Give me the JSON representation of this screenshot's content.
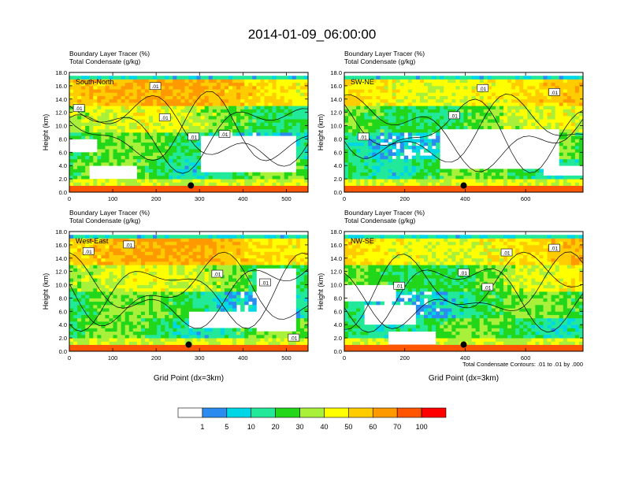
{
  "title": "2014-01-09_06:00:00",
  "colors": [
    "#ffffff",
    "#2b8cf0",
    "#00d7e6",
    "#22e89a",
    "#22d61a",
    "#a8f03a",
    "#ffff00",
    "#ffcc00",
    "#ff9900",
    "#ff5500",
    "#ff0000"
  ],
  "colorbar": {
    "labels": [
      "1",
      "5",
      "10",
      "20",
      "30",
      "40",
      "50",
      "60",
      "70",
      "100"
    ]
  },
  "chart_data": [
    {
      "type": "heatmap",
      "panel_label": "South-North",
      "header_line1": "Boundary Layer Tracer   (%)",
      "header_line2": "Total Condensate   (g/kg)",
      "ylabel": "Height (km)",
      "xlabel": "",
      "xlim": [
        0,
        550
      ],
      "ylim": [
        0,
        18
      ],
      "x_ticks": [
        "0",
        "100",
        "200",
        "300",
        "400",
        "500"
      ],
      "y_ticks": [
        "0.0",
        "2.0",
        "4.0",
        "6.0",
        "8.0",
        "10.0",
        "12.0",
        "14.0",
        "16.0",
        "18.0"
      ],
      "contour_labels": [
        ".01",
        ".01",
        ".01",
        ".01",
        ".01"
      ],
      "marker": {
        "x": 280,
        "y": 1.0
      }
    },
    {
      "type": "heatmap",
      "panel_label": "SW-NE",
      "header_line1": "Boundary Layer Tracer   (%)",
      "header_line2": "Total Condensate   (g/kg)",
      "ylabel": "Height (km)",
      "xlabel": "",
      "xlim": [
        0,
        790
      ],
      "ylim": [
        0,
        18
      ],
      "x_ticks": [
        "0",
        "200",
        "400",
        "600"
      ],
      "y_ticks": [
        "0.0",
        "2.0",
        "4.0",
        "6.0",
        "8.0",
        "10.0",
        "12.0",
        "14.0",
        "16.0",
        "18.0"
      ],
      "contour_labels": [
        ".01",
        ".01",
        ".01",
        ".01"
      ],
      "marker": {
        "x": 395,
        "y": 1.0
      }
    },
    {
      "type": "heatmap",
      "panel_label": "West-East",
      "header_line1": "Boundary Layer Tracer   (%)",
      "header_line2": "Total Condensate   (g/kg)",
      "ylabel": "Height (km)",
      "xlabel": "Grid Point (dx=3km)",
      "xlim": [
        0,
        550
      ],
      "ylim": [
        0,
        18
      ],
      "x_ticks": [
        "0",
        "100",
        "200",
        "300",
        "400",
        "500"
      ],
      "y_ticks": [
        "0.0",
        "2.0",
        "4.0",
        "6.0",
        "8.0",
        "10.0",
        "12.0",
        "14.0",
        "16.0",
        "18.0"
      ],
      "contour_labels": [
        ".01",
        ".01",
        ".01",
        ".01",
        ".01"
      ],
      "marker": {
        "x": 275,
        "y": 1.0
      }
    },
    {
      "type": "heatmap",
      "panel_label": "NW-SE",
      "header_line1": "Boundary Layer Tracer   (%)",
      "header_line2": "Total Condensate   (g/kg)",
      "ylabel": "Height (km)",
      "xlabel": "Grid Point (dx=3km)",
      "xlim": [
        0,
        790
      ],
      "ylim": [
        0,
        18
      ],
      "x_ticks": [
        "0",
        "200",
        "400",
        "600"
      ],
      "y_ticks": [
        "0.0",
        "2.0",
        "4.0",
        "6.0",
        "8.0",
        "10.0",
        "12.0",
        "14.0",
        "16.0",
        "18.0"
      ],
      "contour_labels": [
        ".01",
        ".01",
        ".01",
        ".01",
        ".01"
      ],
      "marker": {
        "x": 395,
        "y": 1.0
      },
      "footnote": "Total Condensate Contours: .01 to .01 by .000"
    }
  ]
}
